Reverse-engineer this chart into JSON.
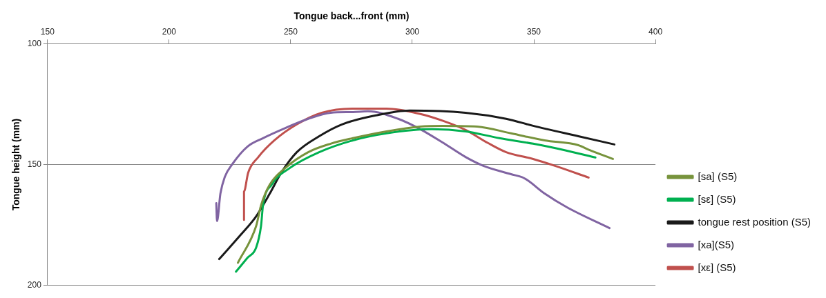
{
  "chart_data": {
    "type": "line",
    "xlabel": "Tongue back...front (mm)",
    "ylabel": "Tongue height (mm)",
    "xlim": [
      150,
      400
    ],
    "xticks": [
      150,
      200,
      250,
      300,
      350,
      400
    ],
    "ylim": [
      200,
      100
    ],
    "yticks": [
      100,
      150,
      200
    ],
    "grid": "y",
    "legend": "right",
    "marker": "none",
    "line_style": "solid",
    "series": [
      {
        "name": "[sa] (S5)",
        "color": "#77933c",
        "x": [
          228.3,
          235.8,
          237.8,
          241.4,
          247.8,
          257.2,
          266.4,
          275.6,
          289.4,
          303.3,
          312.8,
          326.7,
          340.6,
          354.4,
          368.3,
          372.8,
          382.5
        ],
        "values": [
          190.6,
          175.4,
          166.9,
          158.3,
          151.4,
          144.9,
          141.4,
          139.1,
          136.3,
          134.3,
          134,
          134.3,
          137.1,
          140,
          142,
          144,
          147.7
        ]
      },
      {
        "name": "[sε] (S5)",
        "color": "#00b050",
        "x": [
          227.5,
          232.2,
          235.8,
          237.8,
          238.6,
          242.2,
          249.7,
          261.7,
          275.6,
          289.4,
          308.1,
          321.9,
          335.8,
          349.7,
          363.6,
          375.3
        ],
        "values": [
          194.3,
          188.6,
          184.3,
          175.4,
          166.9,
          158.3,
          151.4,
          144.9,
          140,
          137.1,
          135.4,
          136.3,
          139.1,
          141.4,
          144.3,
          147.1
        ]
      },
      {
        "name": "tongue rest position (S5)",
        "color": "#1a1a1a",
        "x": [
          220.6,
          229.4,
          235.8,
          241.4,
          246.1,
          252.5,
          261.7,
          271.1,
          285,
          298.9,
          321.9,
          338.6,
          349.7,
          368.3,
          383.1
        ],
        "values": [
          189.1,
          179.1,
          171.4,
          162,
          153.4,
          144.9,
          138.3,
          133.4,
          129.7,
          127.7,
          128.6,
          131.1,
          134,
          138.3,
          141.7
        ]
      },
      {
        "name": "[xa](S5)",
        "color": "#8064a2",
        "x": [
          219.4,
          219.7,
          221.1,
          222.8,
          226.1,
          232.2,
          238.6,
          247.8,
          257.2,
          266.4,
          275.6,
          281.7,
          294.2,
          303.3,
          312.8,
          321.9,
          329.4,
          340.6,
          346.1,
          354.4,
          363.6,
          381.1
        ],
        "values": [
          166,
          173.4,
          162,
          155.4,
          149.7,
          142.6,
          139.1,
          134.9,
          131.1,
          128.6,
          128.3,
          128,
          131.1,
          135.4,
          141.1,
          146.9,
          150.6,
          154,
          155.7,
          162,
          167.7,
          176.3
        ]
      },
      {
        "name": "[xε] (S5)",
        "color": "#c0504d",
        "x": [
          230.8,
          230.8,
          232.5,
          236.7,
          243.3,
          252.5,
          262.8,
          275.6,
          289.4,
          303.3,
          312.8,
          321.9,
          331.1,
          338.6,
          349.7,
          358.9,
          372.5
        ],
        "values": [
          172.9,
          161.1,
          153.4,
          146.9,
          140,
          133.4,
          128.6,
          126.9,
          126.9,
          129.1,
          132,
          135.7,
          141.1,
          144.9,
          147.7,
          150.6,
          155.4
        ]
      }
    ]
  }
}
